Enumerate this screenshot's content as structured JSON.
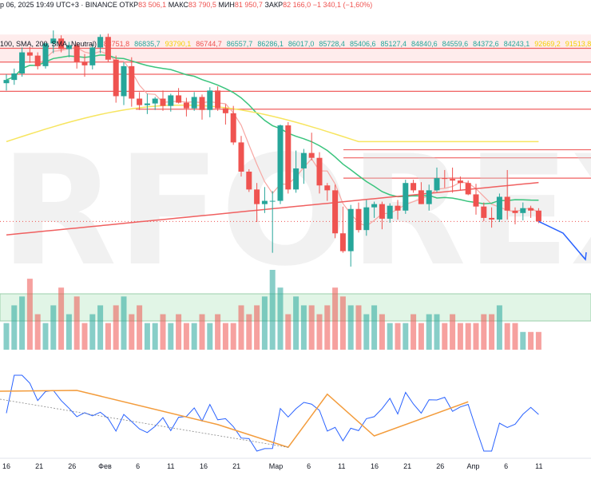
{
  "header": {
    "prefix": "р 06, 2025 19:49 UTC+3",
    "exchange": "· BINANCE",
    "open_label": "ОТКР",
    "open_value": "83 506,1",
    "high_label": "МАКС",
    "high_value": "83 790,5",
    "low_label": "МИН",
    "low_value": "81 950,7",
    "close_label": "ЗАКР",
    "close_value": "82 166,0",
    "change": "−1 340,1 (−1,60%)"
  },
  "ma_row": {
    "label": "100, SMA, 200, SMA, Neutral)",
    "values": [
      "83751,8",
      "86835,7",
      "93790,1",
      "86744,7",
      "86557,7",
      "86286,1",
      "86017,0",
      "85728,4",
      "85406,6",
      "85127,4",
      "84840,6",
      "84559,6",
      "84372,6",
      "84243,1",
      "92669,2",
      "91513,8"
    ],
    "value_colors": [
      "#ef5350",
      "#26a69a",
      "#f5d000",
      "#ef5350",
      "#26a69a",
      "#26a69a",
      "#26a69a",
      "#26a69a",
      "#26a69a",
      "#26a69a",
      "#26a69a",
      "#26a69a",
      "#26a69a",
      "#26a69a",
      "#f5d000",
      "#f5d000"
    ]
  },
  "watermark": "RFOREX",
  "colors": {
    "up": "#26a69a",
    "down": "#ef5350",
    "ma_fast": "#f7a7a3",
    "ma_green": "#3ac47d",
    "ma_red": "#f06060",
    "ma_yellow": "#f7e560",
    "zone": "#c4eccf",
    "zone_red": "#fde0e0",
    "rsi": "#2962ff",
    "zigzag": "#f39c3c"
  },
  "chart_data": {
    "type": "candlestick",
    "symbol_exchange": "BINANCE",
    "x_ticks": [
      "16",
      "21",
      "26",
      "Фев",
      "6",
      "11",
      "16",
      "21",
      "Мар",
      "6",
      "11",
      "16",
      "21",
      "26",
      "Апр",
      "6",
      "11"
    ],
    "candles": [
      [
        99200,
        100300,
        98300,
        99600
      ],
      [
        99600,
        101000,
        99000,
        100400
      ],
      [
        100400,
        103600,
        100000,
        103000
      ],
      [
        103000,
        103700,
        101700,
        102600
      ],
      [
        102600,
        103000,
        100900,
        101300
      ],
      [
        101300,
        104200,
        101000,
        104100
      ],
      [
        104100,
        105700,
        102900,
        104700
      ],
      [
        104700,
        105100,
        103000,
        103400
      ],
      [
        103400,
        104300,
        102400,
        103900
      ],
      [
        103900,
        104200,
        101000,
        101800
      ],
      [
        101800,
        102800,
        100000,
        101400
      ],
      [
        101400,
        104000,
        100900,
        103600
      ],
      [
        103600,
        105200,
        102900,
        104900
      ],
      [
        104900,
        105300,
        101800,
        102100
      ],
      [
        102100,
        102600,
        96800,
        97600
      ],
      [
        97600,
        101800,
        96500,
        101300
      ],
      [
        101300,
        102400,
        96300,
        97300
      ],
      [
        97300,
        98100,
        95900,
        96500
      ],
      [
        96500,
        97900,
        95400,
        96700
      ],
      [
        96700,
        97500,
        95900,
        97300
      ],
      [
        97300,
        98300,
        95800,
        96400
      ],
      [
        96400,
        97900,
        95700,
        97700
      ],
      [
        97700,
        98600,
        96700,
        96800
      ],
      [
        96800,
        97400,
        95100,
        96100
      ],
      [
        96100,
        98100,
        95800,
        97500
      ],
      [
        97500,
        97800,
        94700,
        95900
      ],
      [
        95900,
        98700,
        95000,
        98300
      ],
      [
        98300,
        98800,
        95800,
        96100
      ],
      [
        96100,
        96600,
        94100,
        95500
      ],
      [
        95500,
        96400,
        91600,
        91900
      ],
      [
        91900,
        92700,
        87700,
        88300
      ],
      [
        88300,
        88600,
        85800,
        86100
      ],
      [
        86100,
        86900,
        82100,
        84300
      ],
      [
        84300,
        86400,
        83200,
        84700
      ],
      [
        84700,
        85900,
        78300,
        84700
      ],
      [
        84700,
        94100,
        84300,
        94000
      ],
      [
        94000,
        94400,
        85600,
        86100
      ],
      [
        86100,
        90900,
        85700,
        88700
      ],
      [
        88700,
        91100,
        86800,
        90600
      ],
      [
        90600,
        93100,
        89700,
        90000
      ],
      [
        90000,
        90700,
        85600,
        86600
      ],
      [
        86600,
        86900,
        84700,
        86000
      ],
      [
        86000,
        86700,
        80100,
        80700
      ],
      [
        80700,
        84000,
        78300,
        78500
      ],
      [
        78500,
        84200,
        76600,
        83700
      ],
      [
        83700,
        84500,
        80800,
        81100
      ],
      [
        81100,
        84800,
        80400,
        83900
      ],
      [
        83900,
        84600,
        82600,
        84300
      ],
      [
        84300,
        84600,
        81200,
        82500
      ],
      [
        82500,
        84400,
        82000,
        84100
      ],
      [
        84100,
        84800,
        82400,
        83500
      ],
      [
        83500,
        87300,
        83100,
        86900
      ],
      [
        86900,
        87300,
        85700,
        86000
      ],
      [
        86000,
        87000,
        84300,
        84300
      ],
      [
        84300,
        86700,
        83500,
        86000
      ],
      [
        86000,
        88800,
        85800,
        87500
      ],
      [
        87500,
        88500,
        86300,
        87400
      ],
      [
        87400,
        88800,
        85700,
        87200
      ],
      [
        87200,
        87700,
        86000,
        86900
      ],
      [
        86900,
        87200,
        85400,
        85500
      ],
      [
        85500,
        86800,
        83000,
        84000
      ],
      [
        84000,
        84500,
        82200,
        82600
      ],
      [
        82600,
        83900,
        81400,
        82400
      ],
      [
        82400,
        85600,
        82100,
        85200
      ],
      [
        85200,
        88500,
        82400,
        83500
      ],
      [
        83500,
        83900,
        81800,
        83200
      ],
      [
        83200,
        84500,
        82300,
        83800
      ],
      [
        83800,
        84100,
        82600,
        83500
      ],
      [
        83500,
        83800,
        81950,
        82166
      ]
    ],
    "volume": [
      3,
      5,
      6,
      8,
      4,
      3,
      5,
      7,
      4,
      6,
      3,
      4,
      5,
      3,
      5,
      6,
      4,
      5,
      3,
      3,
      4,
      3,
      4,
      3,
      3,
      4,
      3,
      4,
      3,
      3,
      5,
      4,
      5,
      6,
      9,
      7,
      4,
      6,
      5,
      5,
      4,
      5,
      7,
      6,
      5,
      5,
      4,
      5,
      4,
      3,
      3,
      3,
      4,
      3,
      4,
      4,
      3,
      4,
      3,
      3,
      3,
      4,
      4,
      5,
      3,
      3,
      2,
      2,
      2
    ],
    "ma_levels_note": "horizontal resistance levels",
    "resistance_levels": [
      103500,
      101800,
      100300,
      98200,
      96000,
      91000,
      90000,
      87500
    ],
    "support_zone_volume": "green band",
    "indicators": [
      "SMA 100",
      "SMA 200",
      "RSI"
    ],
    "y_range": [
      76000,
      106500
    ]
  }
}
